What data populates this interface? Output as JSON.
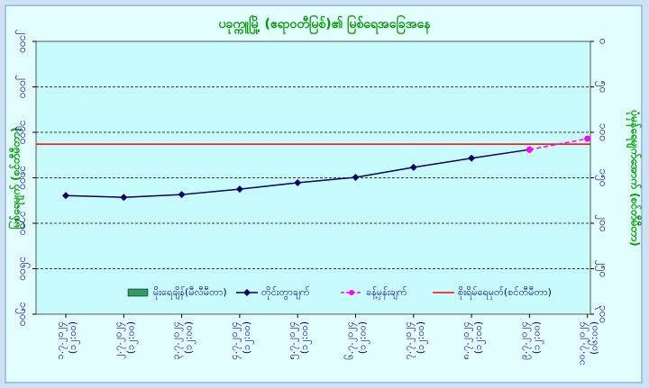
{
  "chart_data": {
    "type": "line",
    "title": "ပခုက္ကူမြို့ (ဧရာဝတီမြစ်)၏ မြစ်ရေအခြေအနေ",
    "y_label": "မြစ်ရေမျက် (စင်တီမီတာ)",
    "y2_label": "ပုံမှန်ရေမျက်အောက် (စင်တီမီတာ)",
    "categories": [
      "၁.၇.၂၀၂၄",
      "၂.၇.၂၀၂၄",
      "၃.၇.၂၀၂၄",
      "၄.၇.၂၀၂၄",
      "၅.၇.၂၀၂၄",
      "၆.၇.၂၀၂၄",
      "၇.၇.၂၀၂၄",
      "၈.၇.၂၀၂၄",
      "၉.၇.၂၀၂၄",
      "၁၀.၇.၂၀၂၄"
    ],
    "times": [
      "(၁၂:၀၀)",
      "(၁၂:၀၀)",
      "(၁၂:၀၀)",
      "(၁၂:၀၀)",
      "(၁၂:၀၀)",
      "(၁၂:၀၀)",
      "(၁၂:၀၀)",
      "(၁၂:၀၀)",
      "(၁၂:၀၀)",
      "(၀၆:၀၀)"
    ],
    "ylim": [
      1500,
      2100
    ],
    "yticks": [
      {
        "value": 1500,
        "label": "၁၅၀၀"
      },
      {
        "value": 1600,
        "label": "၁၆၀၀"
      },
      {
        "value": 1700,
        "label": "၁၇၀၀"
      },
      {
        "value": 1800,
        "label": "၁၈၀၀"
      },
      {
        "value": 1900,
        "label": "၁၉၀၀"
      },
      {
        "value": 2000,
        "label": "၂၀၀၀"
      },
      {
        "value": 2100,
        "label": "၂၁၀၀"
      }
    ],
    "y2lim": [
      300,
      0
    ],
    "y2ticks": [
      {
        "value": 300,
        "label": "၃၀၀"
      },
      {
        "value": 250,
        "label": "၂၅၀"
      },
      {
        "value": 200,
        "label": "၂၀၀"
      },
      {
        "value": 150,
        "label": "၁၅၀"
      },
      {
        "value": 100,
        "label": "၁၀၀"
      },
      {
        "value": 50,
        "label": "၅၀"
      },
      {
        "value": 0,
        "label": "၀"
      }
    ],
    "grid": true,
    "series": [
      {
        "name": "မိုးရေချိန်(မီလီမီတာ)",
        "color": "#339966",
        "kind": "bar",
        "values": [
          null,
          null,
          null,
          null,
          null,
          null,
          null,
          null,
          null,
          null
        ]
      },
      {
        "name": "တိုင်းတွာချက်",
        "color": "#000066",
        "kind": "line",
        "values": [
          1761,
          1757,
          1763,
          1775,
          1789,
          1801,
          1823,
          1843,
          1862,
          null
        ]
      },
      {
        "name": "ခန့်မှန်းချက်",
        "color": "#ff00ff",
        "kind": "dashed",
        "values": [
          null,
          null,
          null,
          null,
          null,
          null,
          null,
          null,
          1862,
          1886
        ]
      }
    ],
    "danger_level": {
      "name": "စိုးရိမ်ရေမှတ်(စင်တီမီတာ)",
      "color": "#ff0000",
      "value": 1874
    }
  }
}
